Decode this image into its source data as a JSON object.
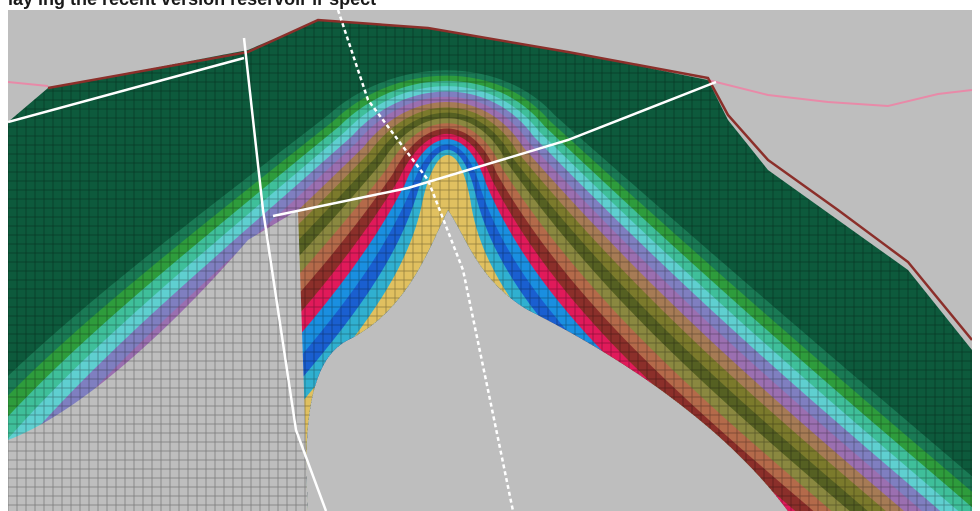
{
  "caption": "lay ing the recent version reservoir ir  spect  ",
  "colors": {
    "background": "#bebebe",
    "layer_outer_to_inner": [
      "#0d5a3c",
      "#1a7a55",
      "#2e9c3c",
      "#3fbf9a",
      "#5fcfd0",
      "#7f7fc0",
      "#9b6fb0",
      "#a67b55",
      "#7b7a2c",
      "#556022",
      "#8a8840",
      "#b46a4a",
      "#8b2f2a",
      "#e01a5a",
      "#1a8fe0",
      "#1a5fd0",
      "#30b0d0",
      "#e0c060"
    ],
    "horizon_line": "#8b2f2a",
    "topography_line": "#e88aa8",
    "fault_line": "#ffffff"
  },
  "legend": []
}
